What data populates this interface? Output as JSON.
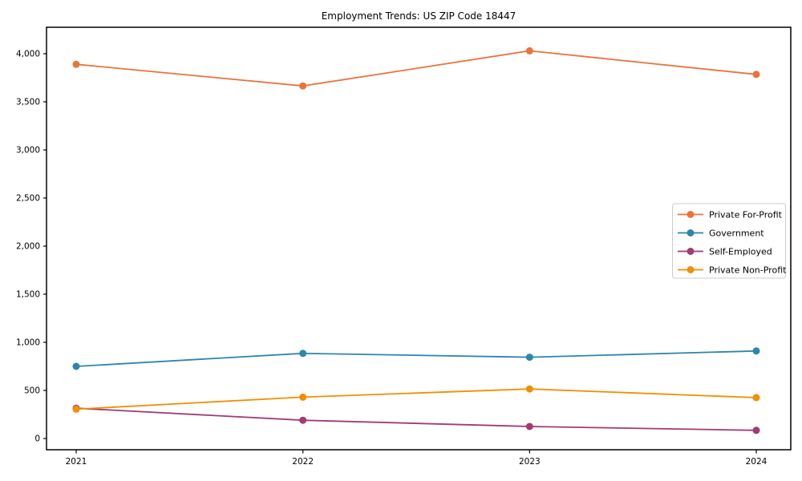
{
  "chart_data": {
    "type": "line",
    "title": "Employment Trends: US ZIP Code 18447",
    "categories": [
      "2021",
      "2022",
      "2023",
      "2024"
    ],
    "series": [
      {
        "name": "Private For-Profit",
        "color": "#E8743B",
        "values": [
          3890,
          3665,
          4030,
          3785
        ]
      },
      {
        "name": "Government",
        "color": "#2E86AB",
        "values": [
          750,
          885,
          845,
          910
        ]
      },
      {
        "name": "Self-Employed",
        "color": "#A23B72",
        "values": [
          315,
          190,
          125,
          85
        ]
      },
      {
        "name": "Private Non-Profit",
        "color": "#F18F01",
        "values": [
          305,
          430,
          515,
          425
        ]
      }
    ],
    "xlabel": "",
    "ylabel": "",
    "yticks": {
      "values": [
        0,
        500,
        1000,
        1500,
        2000,
        2500,
        3000,
        3500,
        4000
      ],
      "labels": [
        "0",
        "500",
        "1,000",
        "1,500",
        "2,000",
        "2,500",
        "3,000",
        "3,500",
        "4,000"
      ]
    },
    "ylim": [
      -120,
      4280
    ],
    "grid": false,
    "legend_position": "center-right",
    "marker": "circle"
  }
}
